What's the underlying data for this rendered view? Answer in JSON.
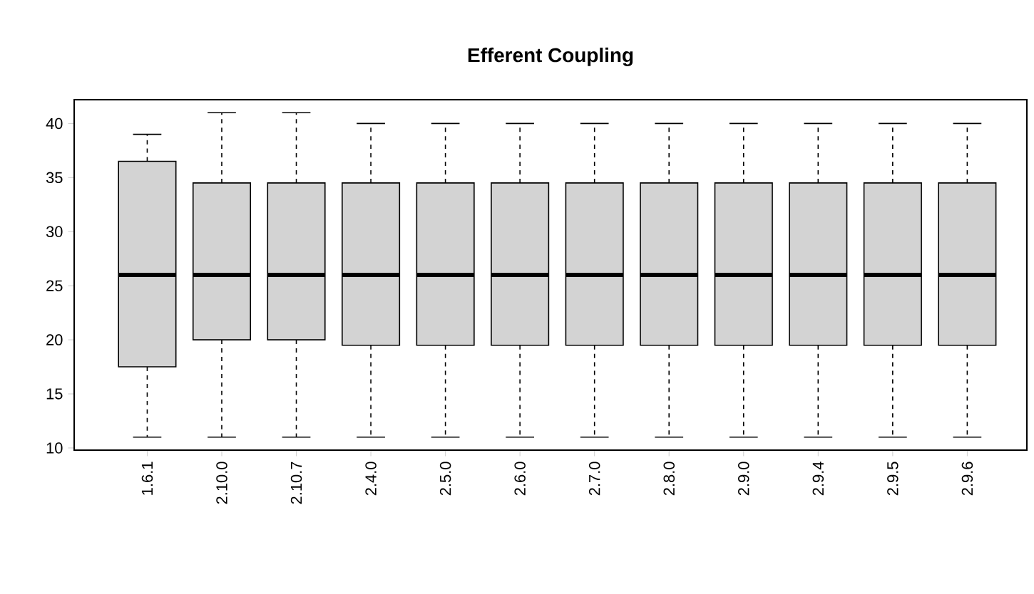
{
  "chart_data": {
    "type": "box",
    "title": "Efferent Coupling",
    "categories": [
      "1.6.1",
      "2.10.0",
      "2.10.7",
      "2.4.0",
      "2.5.0",
      "2.6.0",
      "2.7.0",
      "2.8.0",
      "2.9.0",
      "2.9.4",
      "2.9.5",
      "2.9.6"
    ],
    "boxes": [
      {
        "low": 11,
        "q1": 17.5,
        "median": 26,
        "q3": 36.5,
        "high": 39
      },
      {
        "low": 11,
        "q1": 20,
        "median": 26,
        "q3": 34.5,
        "high": 41
      },
      {
        "low": 11,
        "q1": 20,
        "median": 26,
        "q3": 34.5,
        "high": 41
      },
      {
        "low": 11,
        "q1": 19.5,
        "median": 26,
        "q3": 34.5,
        "high": 40
      },
      {
        "low": 11,
        "q1": 19.5,
        "median": 26,
        "q3": 34.5,
        "high": 40
      },
      {
        "low": 11,
        "q1": 19.5,
        "median": 26,
        "q3": 34.5,
        "high": 40
      },
      {
        "low": 11,
        "q1": 19.5,
        "median": 26,
        "q3": 34.5,
        "high": 40
      },
      {
        "low": 11,
        "q1": 19.5,
        "median": 26,
        "q3": 34.5,
        "high": 40
      },
      {
        "low": 11,
        "q1": 19.5,
        "median": 26,
        "q3": 34.5,
        "high": 40
      },
      {
        "low": 11,
        "q1": 19.5,
        "median": 26,
        "q3": 34.5,
        "high": 40
      },
      {
        "low": 11,
        "q1": 19.5,
        "median": 26,
        "q3": 34.5,
        "high": 40
      },
      {
        "low": 11,
        "q1": 19.5,
        "median": 26,
        "q3": 34.5,
        "high": 40
      }
    ],
    "color": "#d3d3d3",
    "ylim": [
      9.8,
      42.2
    ],
    "yticks": [
      10,
      15,
      20,
      25,
      30,
      35,
      40
    ]
  }
}
